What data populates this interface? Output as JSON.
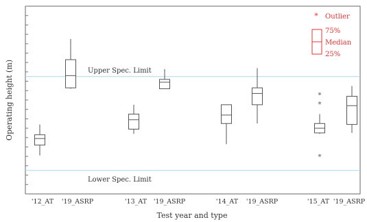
{
  "chart_data": {
    "type": "box",
    "xlabel": "Test year and type",
    "ylabel": "Operating height (m)",
    "ylim": [
      0,
      10
    ],
    "yticks_shown": false,
    "categories": [
      "'12_AT",
      "'19_ASRP",
      "'13_AT",
      "'19_ASRP",
      "'14_AT",
      "'19_ASRP",
      "'15_AT",
      "'19_ASRP"
    ],
    "boxes": [
      {
        "category": "'12_AT",
        "whisker_low": 2.05,
        "q1": 2.6,
        "median": 2.95,
        "q3": 3.15,
        "whisker_high": 3.7,
        "outliers": []
      },
      {
        "category": "'19_ASRP",
        "whisker_low": 5.6,
        "q1": 5.65,
        "median": 6.3,
        "q3": 7.15,
        "whisker_high": 8.25,
        "outliers": []
      },
      {
        "category": "'13_AT",
        "whisker_low": 3.2,
        "q1": 3.45,
        "median": 3.95,
        "q3": 4.25,
        "whisker_high": 4.75,
        "outliers": []
      },
      {
        "category": "'19_ASRP",
        "whisker_low": 5.6,
        "q1": 5.6,
        "median": 5.95,
        "q3": 6.1,
        "whisker_high": 6.65,
        "outliers": []
      },
      {
        "category": "'14_AT",
        "whisker_low": 2.65,
        "q1": 3.75,
        "median": 4.2,
        "q3": 4.75,
        "whisker_high": 4.75,
        "outliers": []
      },
      {
        "category": "'19_ASRP",
        "whisker_low": 3.75,
        "q1": 4.75,
        "median": 5.35,
        "q3": 5.65,
        "whisker_high": 6.7,
        "outliers": []
      },
      {
        "category": "'15_AT",
        "whisker_low": 3.2,
        "q1": 3.25,
        "median": 3.5,
        "q3": 3.75,
        "whisker_high": 4.25,
        "outliers": [
          2.0,
          4.8,
          5.3
        ]
      },
      {
        "category": "'19_ASRP",
        "whisker_low": 3.25,
        "q1": 3.7,
        "median": 4.7,
        "q3": 5.2,
        "whisker_high": 5.75,
        "outliers": []
      }
    ],
    "reference_lines": [
      {
        "label": "Upper Spec. Limit",
        "value": 6.25,
        "color": "#a8d8ee"
      },
      {
        "label": "Lower Spec. Limit",
        "value": 1.25,
        "color": "#a8d8ee"
      }
    ],
    "legend": {
      "placement": "top-right",
      "color": "#e53030",
      "outlier_symbol": "*",
      "outlier": "Outlier",
      "q3": "75%",
      "median": "Median",
      "q1": "25%"
    },
    "box_color": "#555555"
  }
}
